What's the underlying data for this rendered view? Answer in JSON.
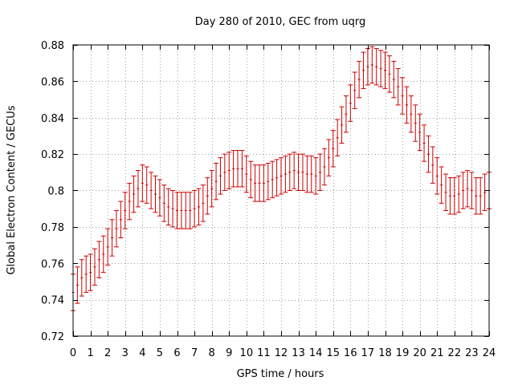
{
  "chart_data": {
    "type": "scatter",
    "title": "Day 280 of 2010, GEC from uqrg",
    "xlabel": "GPS time / hours",
    "ylabel": "Global Electron Content / GECUs",
    "xlim": [
      0,
      24
    ],
    "ylim": [
      0.72,
      0.88
    ],
    "x_ticks": [
      0,
      1,
      2,
      3,
      4,
      5,
      6,
      7,
      8,
      9,
      10,
      11,
      12,
      13,
      14,
      15,
      16,
      17,
      18,
      19,
      20,
      21,
      22,
      23,
      24
    ],
    "y_ticks": [
      0.72,
      0.74,
      0.76,
      0.78,
      0.8,
      0.82,
      0.84,
      0.86,
      0.88
    ],
    "y_tick_labels": [
      "0.72",
      "0.74",
      "0.76",
      "0.78",
      "0.8",
      "0.82",
      "0.84",
      "0.86",
      "0.88"
    ],
    "grid": true,
    "error_bars": true,
    "series_color": "#cc0000",
    "x": [
      0.0,
      0.25,
      0.5,
      0.75,
      1.0,
      1.25,
      1.5,
      1.75,
      2.0,
      2.25,
      2.5,
      2.75,
      3.0,
      3.25,
      3.5,
      3.75,
      4.0,
      4.25,
      4.5,
      4.75,
      5.0,
      5.25,
      5.5,
      5.75,
      6.0,
      6.25,
      6.5,
      6.75,
      7.0,
      7.25,
      7.5,
      7.75,
      8.0,
      8.25,
      8.5,
      8.75,
      9.0,
      9.25,
      9.5,
      9.75,
      10.0,
      10.25,
      10.5,
      10.75,
      11.0,
      11.25,
      11.5,
      11.75,
      12.0,
      12.25,
      12.5,
      12.75,
      13.0,
      13.25,
      13.5,
      13.75,
      14.0,
      14.25,
      14.5,
      14.75,
      15.0,
      15.25,
      15.5,
      15.75,
      16.0,
      16.25,
      16.5,
      16.75,
      17.0,
      17.25,
      17.5,
      17.75,
      18.0,
      18.25,
      18.5,
      18.75,
      19.0,
      19.25,
      19.5,
      19.75,
      20.0,
      20.25,
      20.5,
      20.75,
      21.0,
      21.25,
      21.5,
      21.75,
      22.0,
      22.25,
      22.5,
      22.75,
      23.0,
      23.25,
      23.5,
      23.75,
      24.0
    ],
    "y": [
      0.744,
      0.748,
      0.752,
      0.754,
      0.755,
      0.758,
      0.762,
      0.765,
      0.769,
      0.774,
      0.779,
      0.784,
      0.789,
      0.794,
      0.798,
      0.801,
      0.804,
      0.803,
      0.8,
      0.798,
      0.796,
      0.793,
      0.791,
      0.79,
      0.789,
      0.789,
      0.789,
      0.789,
      0.79,
      0.791,
      0.793,
      0.797,
      0.801,
      0.805,
      0.808,
      0.81,
      0.811,
      0.812,
      0.812,
      0.812,
      0.809,
      0.806,
      0.804,
      0.804,
      0.804,
      0.805,
      0.806,
      0.807,
      0.808,
      0.809,
      0.81,
      0.811,
      0.81,
      0.81,
      0.809,
      0.809,
      0.808,
      0.81,
      0.813,
      0.818,
      0.823,
      0.829,
      0.836,
      0.842,
      0.848,
      0.855,
      0.861,
      0.866,
      0.868,
      0.869,
      0.868,
      0.867,
      0.866,
      0.864,
      0.861,
      0.857,
      0.852,
      0.847,
      0.842,
      0.837,
      0.832,
      0.826,
      0.82,
      0.814,
      0.808,
      0.803,
      0.799,
      0.797,
      0.797,
      0.798,
      0.8,
      0.801,
      0.8,
      0.797,
      0.797,
      0.799,
      0.8
    ],
    "error": 0.01
  }
}
